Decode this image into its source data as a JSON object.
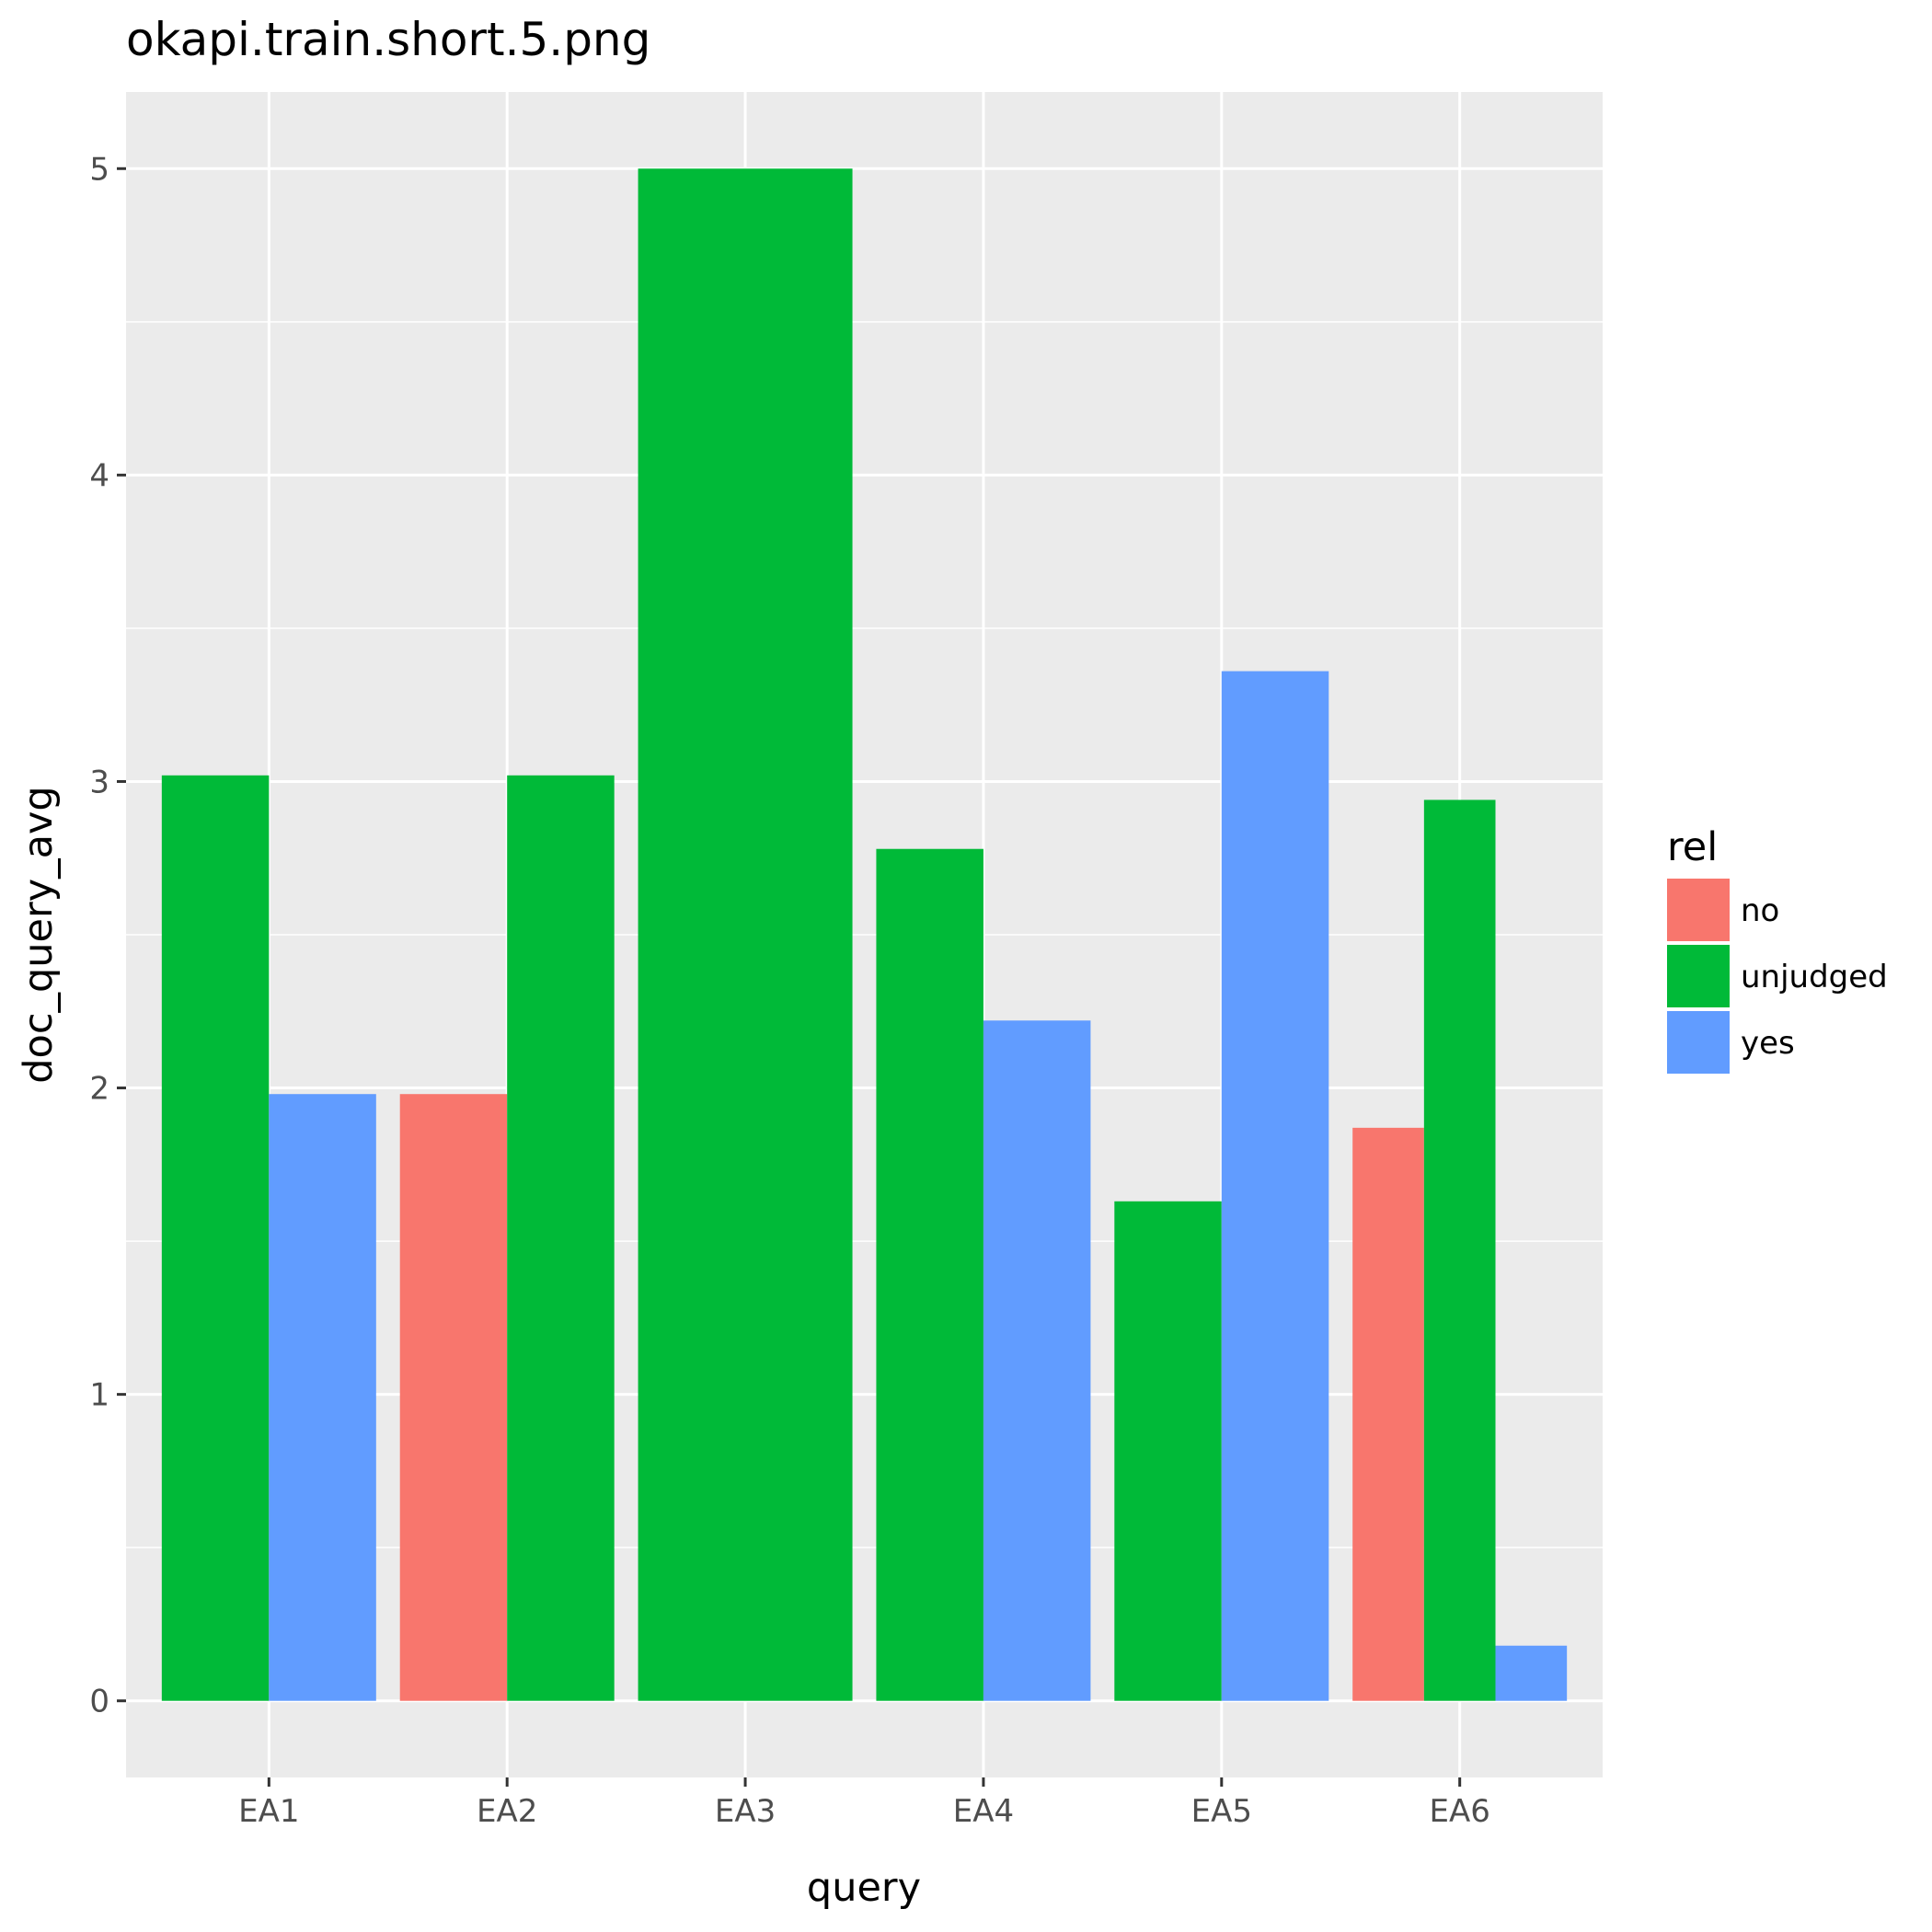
{
  "chart_data": {
    "type": "bar",
    "title": "okapi.train.short.5.png",
    "xlabel": "query",
    "ylabel": "doc_query_avg",
    "categories": [
      "EA1",
      "EA2",
      "EA3",
      "EA4",
      "EA5",
      "EA6"
    ],
    "yticks": [
      "0",
      "1",
      "2",
      "3",
      "4",
      "5"
    ],
    "ylim": [
      -0.25,
      5.25
    ],
    "grid": true,
    "position": "dodge",
    "legend": {
      "title": "rel",
      "placement": "right",
      "entries": [
        {
          "name": "no",
          "color": "#F8766D"
        },
        {
          "name": "unjudged",
          "color": "#00BA38"
        },
        {
          "name": "yes",
          "color": "#619CFF"
        }
      ]
    },
    "series": [
      {
        "name": "no",
        "values": [
          null,
          1.98,
          null,
          null,
          null,
          1.87
        ]
      },
      {
        "name": "unjudged",
        "values": [
          3.02,
          3.02,
          5.0,
          2.78,
          1.63,
          2.94
        ]
      },
      {
        "name": "yes",
        "values": [
          1.98,
          null,
          null,
          2.22,
          3.36,
          0.18
        ]
      }
    ],
    "colors": {
      "panel_background": "#EBEBEB",
      "grid": "#FFFFFF",
      "tick": "#333333"
    }
  }
}
